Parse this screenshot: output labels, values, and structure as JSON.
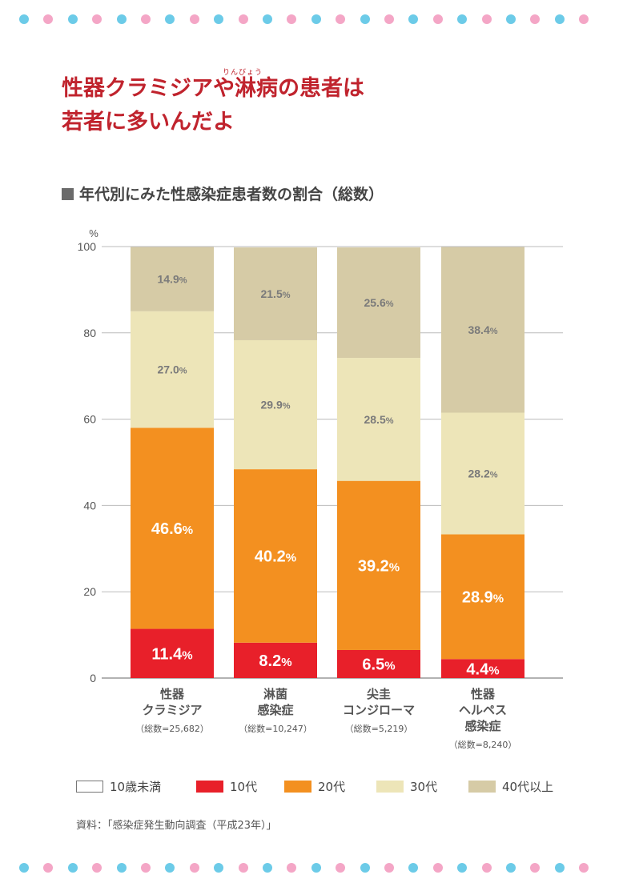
{
  "header": {
    "ruby": "りんびょう",
    "title_line1": "性器クラミジアや淋病の患者は",
    "title_line2": "若者に多いんだよ"
  },
  "subtitle": "年代別にみた性感染症患者数の割合（総数）",
  "chart_data": {
    "type": "bar",
    "stacked": true,
    "ylabel": "%",
    "ylim": [
      0,
      100
    ],
    "yticks": [
      0,
      20,
      40,
      60,
      80,
      100
    ],
    "grid": true,
    "categories": [
      {
        "lines": [
          "性器",
          "クラミジア"
        ],
        "total": "（総数=25,682）"
      },
      {
        "lines": [
          "淋菌",
          "感染症"
        ],
        "total": "（総数=10,247）"
      },
      {
        "lines": [
          "尖圭",
          "コンジローマ"
        ],
        "total": "（総数=5,219）"
      },
      {
        "lines": [
          "性器",
          "ヘルペス",
          "感染症"
        ],
        "total": "（総数=8,240）"
      }
    ],
    "series": [
      {
        "name": "10歳未満",
        "color": "#ffffff",
        "values": [
          0,
          0,
          0,
          0
        ],
        "labels": [
          "",
          "",
          "",
          ""
        ]
      },
      {
        "name": "10代",
        "color": "#e8202a",
        "values": [
          11.4,
          8.2,
          6.5,
          4.4
        ],
        "labels": [
          "11.4",
          "8.2",
          "6.5",
          "4.4"
        ]
      },
      {
        "name": "20代",
        "color": "#f39020",
        "values": [
          46.6,
          40.2,
          39.2,
          28.9
        ],
        "labels": [
          "46.6",
          "40.2",
          "39.2",
          "28.9"
        ]
      },
      {
        "name": "30代",
        "color": "#ede5b8",
        "values": [
          27.0,
          29.9,
          28.5,
          28.2
        ],
        "labels": [
          "27.0",
          "29.9",
          "28.5",
          "28.2"
        ]
      },
      {
        "name": "40代以上",
        "color": "#d6cba6",
        "values": [
          14.9,
          21.5,
          25.6,
          38.4
        ],
        "labels": [
          "14.9",
          "21.5",
          "25.6",
          "38.4"
        ]
      }
    ],
    "value_suffix": "%",
    "legend_position": "bottom"
  },
  "legend": {
    "items": [
      {
        "label": "10歳未満",
        "color": "#ffffff"
      },
      {
        "label": "10代",
        "color": "#e8202a"
      },
      {
        "label": "20代",
        "color": "#f39020"
      },
      {
        "label": "30代",
        "color": "#ede5b8"
      },
      {
        "label": "40代以上",
        "color": "#d6cba6"
      }
    ]
  },
  "source": "資料：「感染症発生動向調査（平成23年）」",
  "colors": {
    "dot_blue": "#6ccbe8",
    "dot_pink": "#f4a6c6",
    "title": "#c0232d"
  }
}
